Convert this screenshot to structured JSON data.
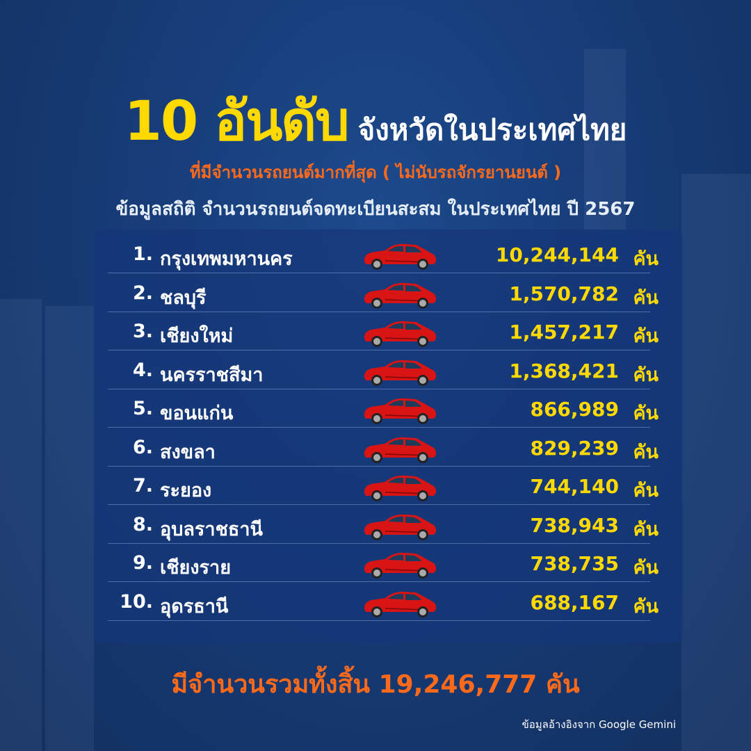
{
  "header": {
    "title_highlight": "10 อันดับ",
    "title_rest": "จังหวัดในประเทศไทย",
    "subtitle": "ที่มีจำนวนรถยนต์มากที่สุด ( ไม่นับรถจักรยานยนต์ )",
    "description": "ข้อมูลสถิติ จำนวนรถยนต์จดทะเบียนสะสม ในประเทศไทย ปี 2567"
  },
  "unit": "คัน",
  "rows": [
    {
      "rank": "1.",
      "province": "กรุงเทพมหานคร",
      "value": "10,244,144"
    },
    {
      "rank": "2.",
      "province": "ชลบุรี",
      "value": "1,570,782"
    },
    {
      "rank": "3.",
      "province": "เชียงใหม่",
      "value": "1,457,217"
    },
    {
      "rank": "4.",
      "province": "นครราชสีมา",
      "value": "1,368,421"
    },
    {
      "rank": "5.",
      "province": "ขอนแก่น",
      "value": "866,989"
    },
    {
      "rank": "6.",
      "province": "สงขลา",
      "value": "829,239"
    },
    {
      "rank": "7.",
      "province": "ระยอง",
      "value": "744,140"
    },
    {
      "rank": "8.",
      "province": "อุบลราชธานี",
      "value": "738,943"
    },
    {
      "rank": "9.",
      "province": "เชียงราย",
      "value": "738,735"
    },
    {
      "rank": "10.",
      "province": "อุดรธานี",
      "value": "688,167"
    }
  ],
  "total": "มีจำนวนรวมทั้งสิ้น 19,246,777 คัน",
  "source": "ข้อมูลอ้างอิงจาก Google Gemini",
  "colors": {
    "highlight": "#ffd900",
    "accent": "#ff6a1a",
    "background": "#173c78",
    "car": "#d91414"
  },
  "icons": {
    "row_icon": "red-car-icon"
  }
}
